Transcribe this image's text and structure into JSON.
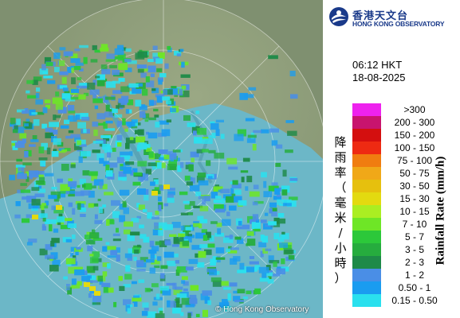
{
  "header": {
    "org_name_zh": "香港天文台",
    "org_name_en": "HONG KONG OBSERVATORY"
  },
  "timestamp": {
    "time": "06:12 HKT",
    "date": "18-08-2025"
  },
  "legend": {
    "title_zh": "降雨率（毫米/小時）",
    "title_en": "Rainfall Rate (mm/h)",
    "items": [
      {
        "label": ">300",
        "color": "#ee22ee"
      },
      {
        "label": "200 - 300",
        "color": "#c8146e"
      },
      {
        "label": "150 - 200",
        "color": "#d40f0f"
      },
      {
        "label": "100 - 150",
        "color": "#ee2a12"
      },
      {
        "label": "75 - 100",
        "color": "#f07d10"
      },
      {
        "label": "50 - 75",
        "color": "#f0a818"
      },
      {
        "label": "30 - 50",
        "color": "#e6c00e"
      },
      {
        "label": "15 - 30",
        "color": "#e3da10"
      },
      {
        "label": "10 - 15",
        "color": "#aaee22"
      },
      {
        "label": "7 - 10",
        "color": "#6ee626"
      },
      {
        "label": "5 - 7",
        "color": "#2cc83a"
      },
      {
        "label": "3 - 5",
        "color": "#26ac3e"
      },
      {
        "label": "2 - 3",
        "color": "#1e8a48"
      },
      {
        "label": "1 - 2",
        "color": "#4a8ee6"
      },
      {
        "label": "0.50 - 1",
        "color": "#1a9cf0"
      },
      {
        "label": "0.15 - 0.50",
        "color": "#2ae0ee"
      }
    ]
  },
  "map": {
    "copyright": "© Hong Kong Observatory",
    "land_color": "#8a9a78",
    "sea_color": "#6ab4c4"
  }
}
